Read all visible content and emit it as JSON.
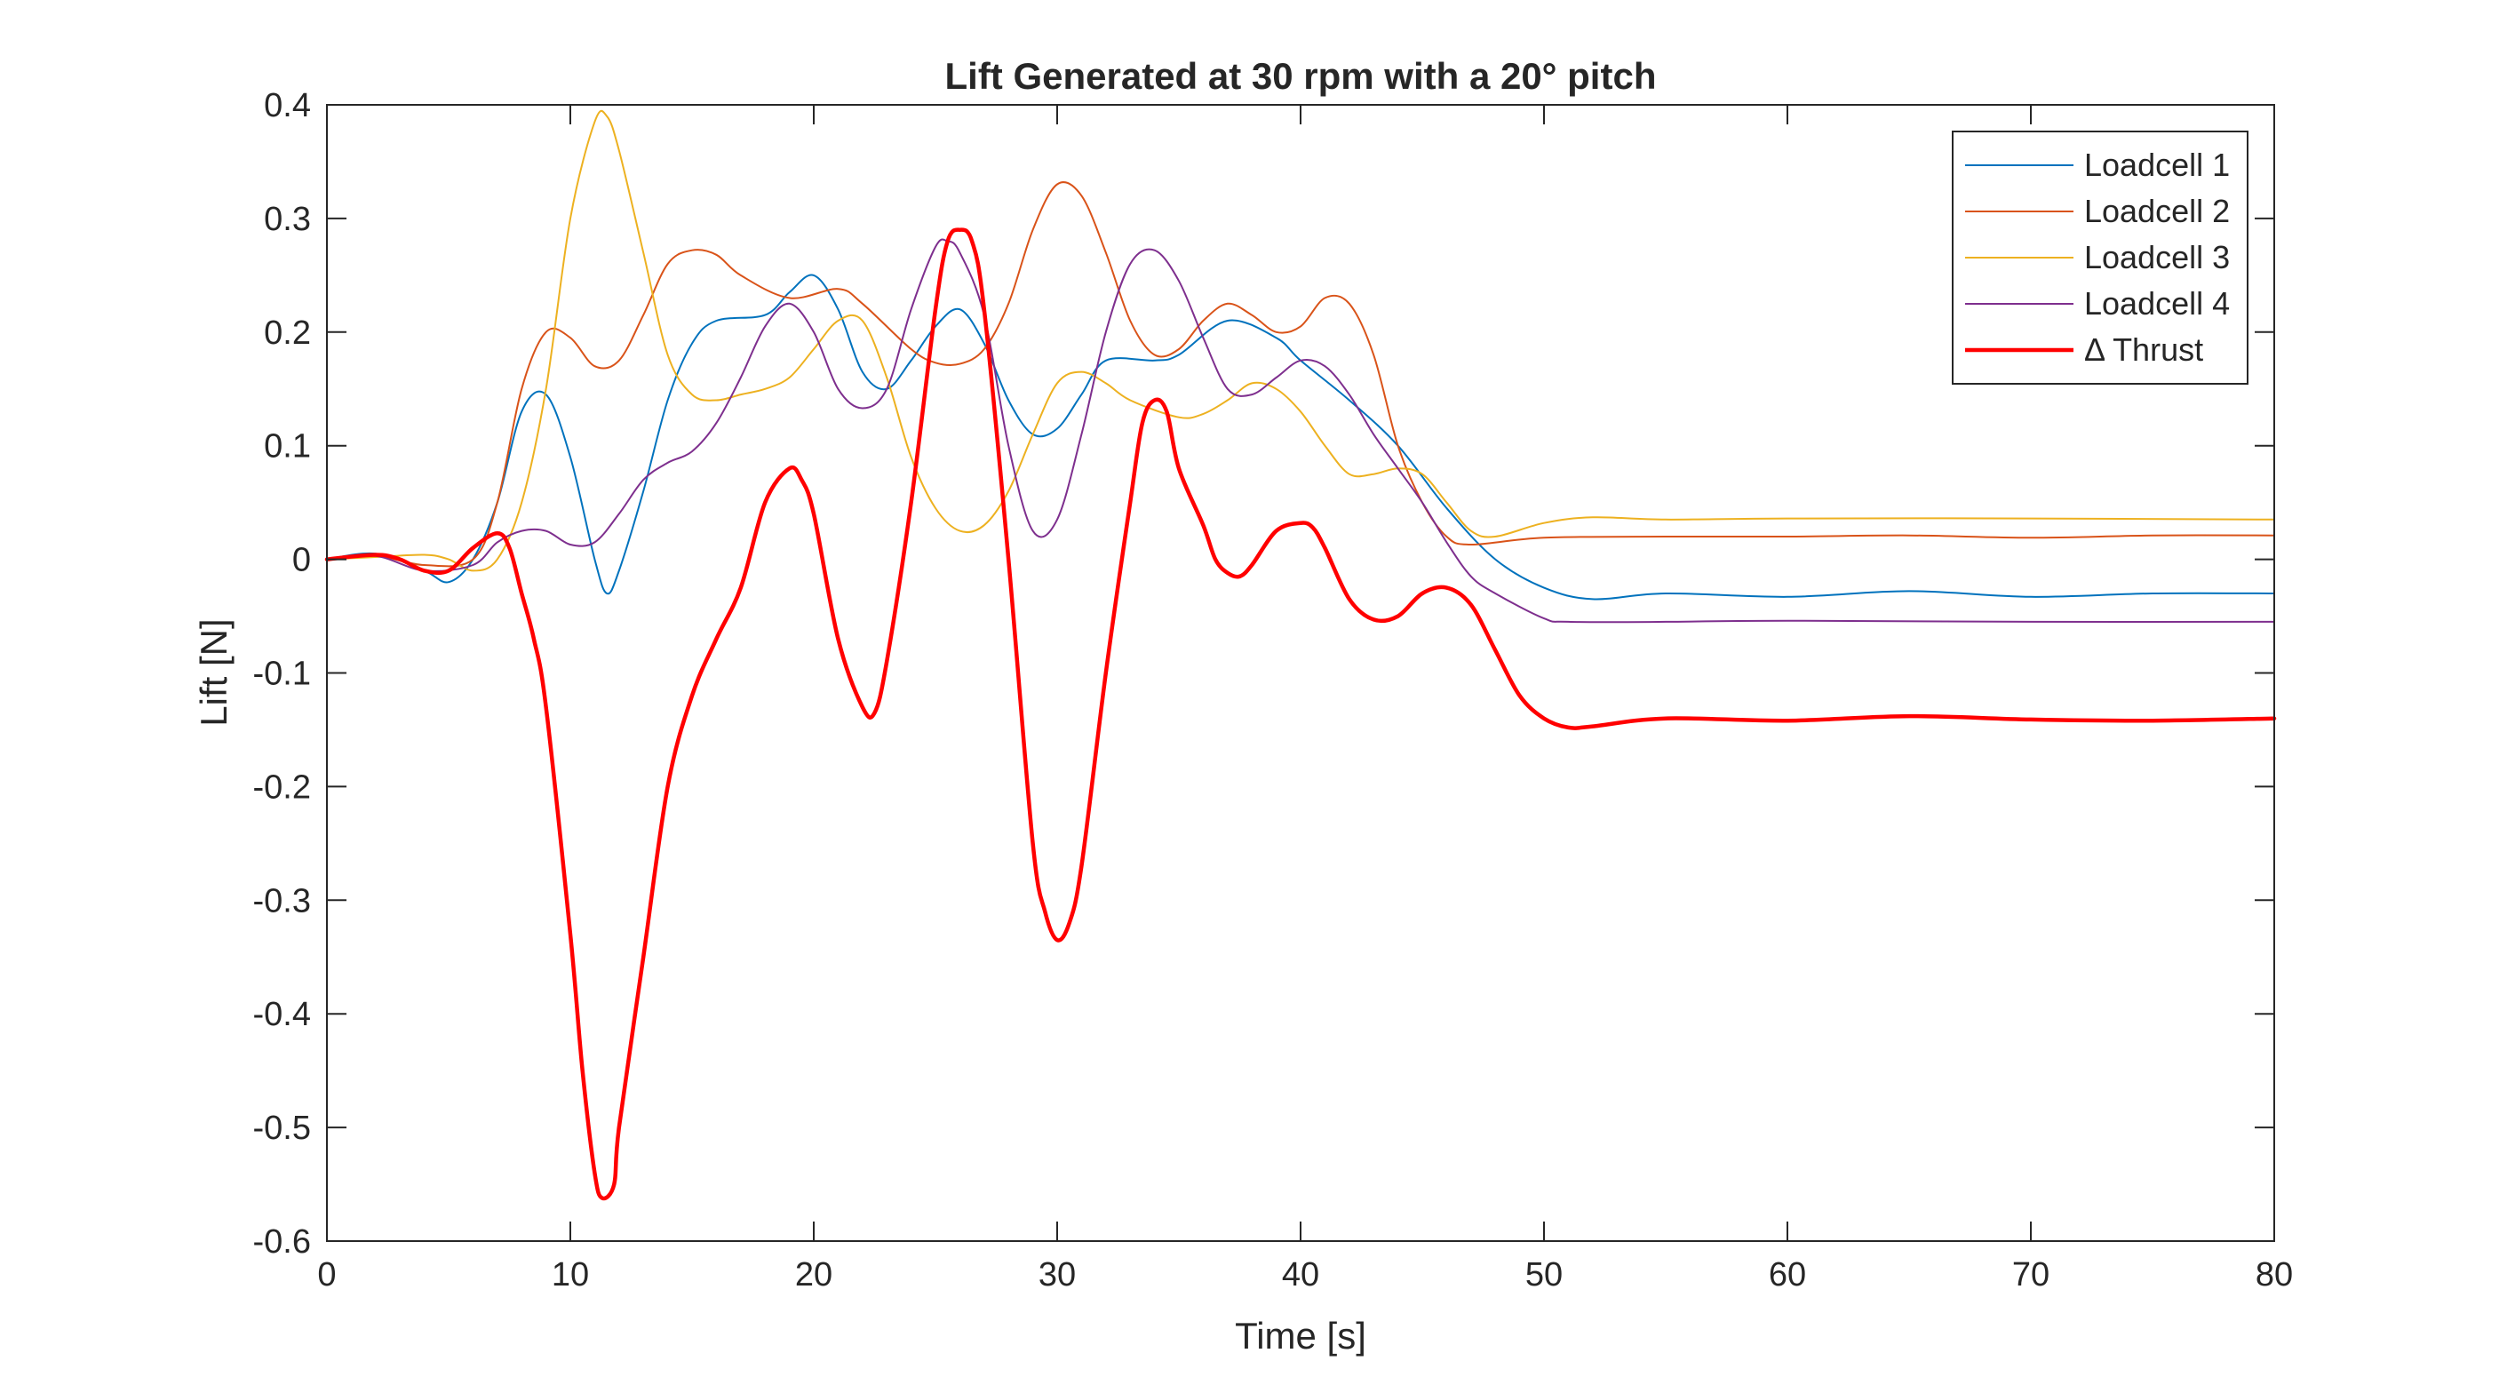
{
  "chart_data": {
    "type": "line",
    "title": "Lift Generated at 30 rpm with a 20° pitch",
    "xlabel": "Time [s]",
    "ylabel": "Lift [N]",
    "xlim": [
      0,
      80
    ],
    "ylim": [
      -0.6,
      0.4
    ],
    "xticks": [
      0,
      10,
      20,
      30,
      40,
      50,
      60,
      70,
      80
    ],
    "xtick_labels": [
      "0",
      "10",
      "20",
      "30",
      "40",
      "50",
      "60",
      "70",
      "80"
    ],
    "yticks": [
      -0.6,
      -0.5,
      -0.4,
      -0.3,
      -0.2,
      -0.1,
      0,
      0.1,
      0.2,
      0.3,
      0.4
    ],
    "ytick_labels": [
      "-0.6",
      "-0.5",
      "-0.4",
      "-0.3",
      "-0.2",
      "-0.1",
      "0",
      "0.1",
      "0.2",
      "0.3",
      "0.4"
    ],
    "grid": false,
    "legend_position": "top-right",
    "series": [
      {
        "name": "Loadcell 1",
        "color": "#0072BD",
        "width": 2,
        "points": [
          [
            0,
            0.0
          ],
          [
            2,
            0.005
          ],
          [
            4,
            -0.01
          ],
          [
            5,
            -0.02
          ],
          [
            6,
            0.0
          ],
          [
            7,
            0.05
          ],
          [
            8,
            0.13
          ],
          [
            9,
            0.145
          ],
          [
            10,
            0.09
          ],
          [
            11,
            0.0
          ],
          [
            11.5,
            -0.03
          ],
          [
            12,
            -0.01
          ],
          [
            13,
            0.06
          ],
          [
            14,
            0.14
          ],
          [
            15,
            0.19
          ],
          [
            16,
            0.21
          ],
          [
            18,
            0.215
          ],
          [
            19,
            0.235
          ],
          [
            20,
            0.25
          ],
          [
            21,
            0.22
          ],
          [
            22,
            0.165
          ],
          [
            23,
            0.15
          ],
          [
            24,
            0.175
          ],
          [
            25,
            0.205
          ],
          [
            26,
            0.22
          ],
          [
            27,
            0.19
          ],
          [
            28,
            0.14
          ],
          [
            29,
            0.11
          ],
          [
            30,
            0.115
          ],
          [
            31,
            0.145
          ],
          [
            32,
            0.175
          ],
          [
            34,
            0.175
          ],
          [
            35,
            0.18
          ],
          [
            37,
            0.21
          ],
          [
            39,
            0.195
          ],
          [
            40,
            0.175
          ],
          [
            42,
            0.14
          ],
          [
            44,
            0.1
          ],
          [
            46,
            0.045
          ],
          [
            48,
            0.0
          ],
          [
            50,
            -0.025
          ],
          [
            52,
            -0.035
          ],
          [
            55,
            -0.03
          ],
          [
            60,
            -0.033
          ],
          [
            65,
            -0.028
          ],
          [
            70,
            -0.033
          ],
          [
            75,
            -0.03
          ],
          [
            80,
            -0.03
          ]
        ]
      },
      {
        "name": "Loadcell 2",
        "color": "#D95319",
        "width": 2,
        "points": [
          [
            0,
            0.0
          ],
          [
            2,
            0.003
          ],
          [
            4,
            -0.005
          ],
          [
            6,
            0.0
          ],
          [
            7,
            0.05
          ],
          [
            8,
            0.15
          ],
          [
            9,
            0.2
          ],
          [
            10,
            0.195
          ],
          [
            11,
            0.17
          ],
          [
            12,
            0.175
          ],
          [
            13,
            0.215
          ],
          [
            14,
            0.26
          ],
          [
            15,
            0.272
          ],
          [
            16,
            0.268
          ],
          [
            17,
            0.25
          ],
          [
            19,
            0.23
          ],
          [
            21,
            0.238
          ],
          [
            22,
            0.225
          ],
          [
            24,
            0.185
          ],
          [
            25,
            0.173
          ],
          [
            26,
            0.172
          ],
          [
            27,
            0.185
          ],
          [
            28,
            0.225
          ],
          [
            29,
            0.29
          ],
          [
            30,
            0.33
          ],
          [
            31,
            0.32
          ],
          [
            32,
            0.27
          ],
          [
            33,
            0.21
          ],
          [
            34,
            0.18
          ],
          [
            35,
            0.185
          ],
          [
            36,
            0.21
          ],
          [
            37,
            0.225
          ],
          [
            38,
            0.215
          ],
          [
            39,
            0.2
          ],
          [
            40,
            0.205
          ],
          [
            41,
            0.23
          ],
          [
            42,
            0.225
          ],
          [
            43,
            0.18
          ],
          [
            44,
            0.1
          ],
          [
            45,
            0.05
          ],
          [
            46,
            0.02
          ],
          [
            47,
            0.013
          ],
          [
            50,
            0.019
          ],
          [
            55,
            0.02
          ],
          [
            60,
            0.02
          ],
          [
            65,
            0.021
          ],
          [
            70,
            0.019
          ],
          [
            75,
            0.021
          ],
          [
            80,
            0.021
          ]
        ]
      },
      {
        "name": "Loadcell 3",
        "color": "#EDB120",
        "width": 2,
        "points": [
          [
            0,
            0.0
          ],
          [
            2,
            0.002
          ],
          [
            4,
            0.004
          ],
          [
            5,
            0.0
          ],
          [
            6,
            -0.01
          ],
          [
            7,
            0.0
          ],
          [
            8,
            0.05
          ],
          [
            9,
            0.15
          ],
          [
            10,
            0.3
          ],
          [
            11,
            0.385
          ],
          [
            11.5,
            0.39
          ],
          [
            12,
            0.36
          ],
          [
            13,
            0.27
          ],
          [
            14,
            0.18
          ],
          [
            15,
            0.145
          ],
          [
            16,
            0.14
          ],
          [
            17,
            0.145
          ],
          [
            18,
            0.15
          ],
          [
            19,
            0.16
          ],
          [
            20,
            0.185
          ],
          [
            21,
            0.21
          ],
          [
            22,
            0.21
          ],
          [
            23,
            0.16
          ],
          [
            24,
            0.09
          ],
          [
            25,
            0.045
          ],
          [
            26,
            0.025
          ],
          [
            27,
            0.03
          ],
          [
            28,
            0.06
          ],
          [
            29,
            0.11
          ],
          [
            30,
            0.155
          ],
          [
            31,
            0.165
          ],
          [
            32,
            0.155
          ],
          [
            33,
            0.14
          ],
          [
            35,
            0.125
          ],
          [
            36,
            0.128
          ],
          [
            37,
            0.14
          ],
          [
            38,
            0.155
          ],
          [
            39,
            0.15
          ],
          [
            40,
            0.13
          ],
          [
            41,
            0.1
          ],
          [
            42,
            0.075
          ],
          [
            43,
            0.075
          ],
          [
            44,
            0.08
          ],
          [
            45,
            0.075
          ],
          [
            46,
            0.05
          ],
          [
            47,
            0.025
          ],
          [
            48,
            0.02
          ],
          [
            50,
            0.032
          ],
          [
            52,
            0.037
          ],
          [
            55,
            0.035
          ],
          [
            60,
            0.036
          ],
          [
            70,
            0.036
          ],
          [
            80,
            0.035
          ]
        ]
      },
      {
        "name": "Loadcell 4",
        "color": "#7E2F8E",
        "width": 2,
        "points": [
          [
            0,
            0.0
          ],
          [
            2,
            0.003
          ],
          [
            4,
            -0.01
          ],
          [
            6,
            -0.005
          ],
          [
            7,
            0.015
          ],
          [
            8,
            0.025
          ],
          [
            9,
            0.025
          ],
          [
            10,
            0.013
          ],
          [
            11,
            0.015
          ],
          [
            12,
            0.04
          ],
          [
            13,
            0.07
          ],
          [
            14,
            0.085
          ],
          [
            15,
            0.095
          ],
          [
            16,
            0.12
          ],
          [
            17,
            0.16
          ],
          [
            18,
            0.205
          ],
          [
            19,
            0.225
          ],
          [
            20,
            0.2
          ],
          [
            21,
            0.15
          ],
          [
            22,
            0.133
          ],
          [
            23,
            0.15
          ],
          [
            24,
            0.22
          ],
          [
            25,
            0.275
          ],
          [
            25.5,
            0.28
          ],
          [
            26,
            0.27
          ],
          [
            27,
            0.215
          ],
          [
            28,
            0.1
          ],
          [
            29,
            0.025
          ],
          [
            30,
            0.035
          ],
          [
            31,
            0.11
          ],
          [
            32,
            0.2
          ],
          [
            33,
            0.26
          ],
          [
            34,
            0.272
          ],
          [
            35,
            0.245
          ],
          [
            36,
            0.195
          ],
          [
            37,
            0.15
          ],
          [
            38,
            0.145
          ],
          [
            39,
            0.16
          ],
          [
            40,
            0.175
          ],
          [
            41,
            0.17
          ],
          [
            42,
            0.145
          ],
          [
            43,
            0.11
          ],
          [
            44,
            0.08
          ],
          [
            45,
            0.05
          ],
          [
            46,
            0.015
          ],
          [
            47,
            -0.015
          ],
          [
            48,
            -0.03
          ],
          [
            50,
            -0.052
          ],
          [
            51,
            -0.055
          ],
          [
            55,
            -0.055
          ],
          [
            60,
            -0.054
          ],
          [
            70,
            -0.055
          ],
          [
            80,
            -0.055
          ]
        ]
      },
      {
        "name": "Δ Thrust",
        "color": "#FF0000",
        "width": 4.5,
        "points": [
          [
            0,
            0.0
          ],
          [
            2,
            0.004
          ],
          [
            3,
            0.0
          ],
          [
            4,
            -0.01
          ],
          [
            5,
            -0.01
          ],
          [
            6,
            0.01
          ],
          [
            7,
            0.023
          ],
          [
            7.5,
            0.01
          ],
          [
            8,
            -0.03
          ],
          [
            8.5,
            -0.07
          ],
          [
            9,
            -0.13
          ],
          [
            10,
            -0.33
          ],
          [
            10.5,
            -0.45
          ],
          [
            11,
            -0.54
          ],
          [
            11.3,
            -0.562
          ],
          [
            11.8,
            -0.55
          ],
          [
            12,
            -0.5
          ],
          [
            13,
            -0.35
          ],
          [
            14,
            -0.2
          ],
          [
            15,
            -0.12
          ],
          [
            16,
            -0.07
          ],
          [
            17,
            -0.025
          ],
          [
            18,
            0.05
          ],
          [
            19,
            0.08
          ],
          [
            19.5,
            0.07
          ],
          [
            20,
            0.04
          ],
          [
            21,
            -0.07
          ],
          [
            22,
            -0.13
          ],
          [
            22.5,
            -0.135
          ],
          [
            23,
            -0.09
          ],
          [
            24,
            0.05
          ],
          [
            25,
            0.22
          ],
          [
            25.5,
            0.28
          ],
          [
            26,
            0.29
          ],
          [
            26.5,
            0.28
          ],
          [
            27,
            0.22
          ],
          [
            28,
            0.0
          ],
          [
            29,
            -0.25
          ],
          [
            29.5,
            -0.31
          ],
          [
            30,
            -0.335
          ],
          [
            30.5,
            -0.32
          ],
          [
            31,
            -0.27
          ],
          [
            32,
            -0.1
          ],
          [
            33,
            0.05
          ],
          [
            33.5,
            0.12
          ],
          [
            34,
            0.14
          ],
          [
            34.5,
            0.13
          ],
          [
            35,
            0.08
          ],
          [
            36,
            0.03
          ],
          [
            36.5,
            0.0
          ],
          [
            37,
            -0.012
          ],
          [
            37.5,
            -0.015
          ],
          [
            38,
            -0.005
          ],
          [
            39,
            0.025
          ],
          [
            40,
            0.032
          ],
          [
            40.5,
            0.028
          ],
          [
            41,
            0.01
          ],
          [
            42,
            -0.035
          ],
          [
            43,
            -0.053
          ],
          [
            44,
            -0.05
          ],
          [
            45,
            -0.03
          ],
          [
            46,
            -0.025
          ],
          [
            47,
            -0.04
          ],
          [
            48,
            -0.08
          ],
          [
            49,
            -0.12
          ],
          [
            50,
            -0.14
          ],
          [
            51,
            -0.148
          ],
          [
            52,
            -0.147
          ],
          [
            55,
            -0.14
          ],
          [
            60,
            -0.142
          ],
          [
            65,
            -0.138
          ],
          [
            70,
            -0.141
          ],
          [
            75,
            -0.142
          ],
          [
            80,
            -0.14
          ]
        ]
      }
    ]
  }
}
